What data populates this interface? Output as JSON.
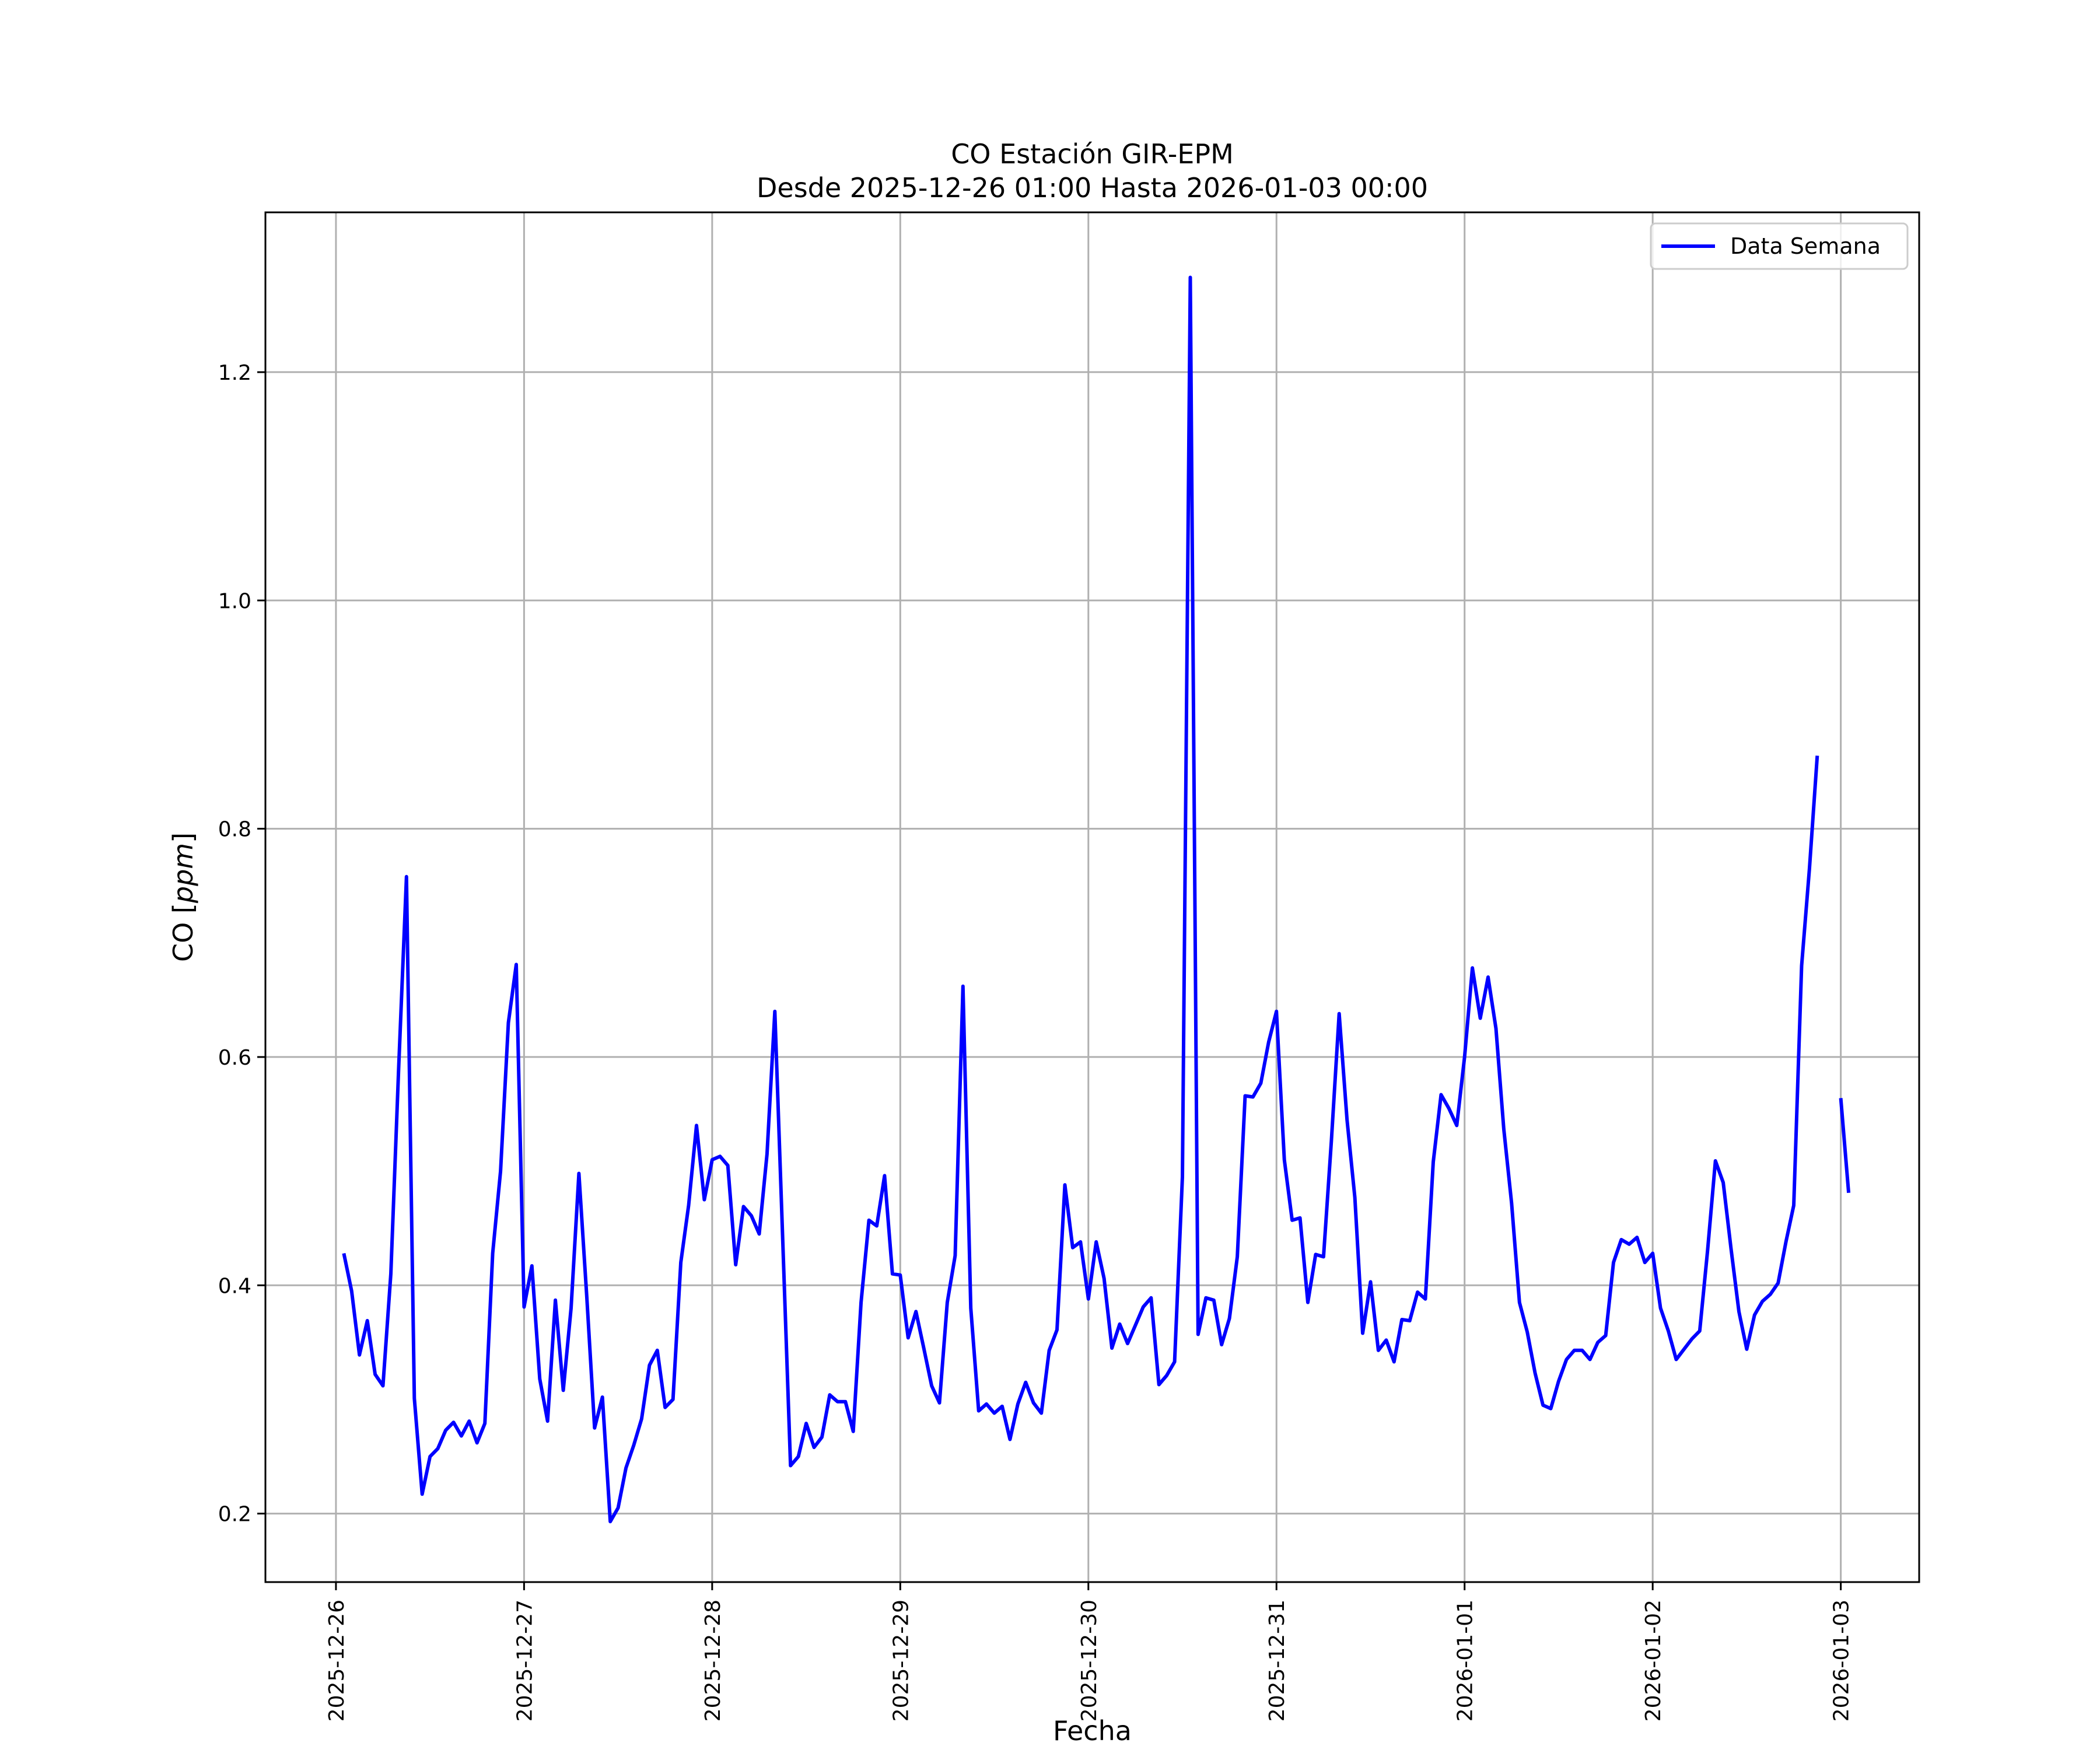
{
  "chart_data": {
    "type": "line",
    "title": "CO Estación GIR-EPM",
    "subtitle": "Desde 2025-12-26 01:00 Hasta 2026-01-03 00:00",
    "xlabel": "Fecha",
    "ylabel_text": "CO [",
    "ylabel_unit": "ppm",
    "ylabel_close": "]",
    "x_ticks": [
      "2025-12-26",
      "2025-12-27",
      "2025-12-28",
      "2025-12-29",
      "2025-12-30",
      "2025-12-31",
      "2026-01-01",
      "2026-01-02",
      "2026-01-03"
    ],
    "y_ticks": [
      0.2,
      0.4,
      0.6,
      0.8,
      1.0,
      1.2
    ],
    "y_tick_labels": [
      "0.2",
      "0.4",
      "0.6",
      "0.8",
      "1.0",
      "1.2"
    ],
    "xlim": [
      "2025-12-25T15:00",
      "2026-01-03T10:00"
    ],
    "ylim": [
      0.14,
      1.34
    ],
    "grid": true,
    "legend_position": "top-right",
    "series": [
      {
        "name": "Data Semana",
        "color": "#0000ff",
        "start": "2025-12-26T01:00",
        "step_hours": 1,
        "values": [
          0.428,
          0.395,
          0.339,
          0.369,
          0.322,
          0.312,
          0.41,
          0.59,
          0.758,
          0.301,
          0.217,
          0.25,
          0.257,
          0.273,
          0.28,
          0.268,
          0.281,
          0.262,
          0.279,
          0.428,
          0.5,
          0.63,
          0.681,
          0.381,
          0.417,
          0.318,
          0.281,
          0.387,
          0.308,
          0.38,
          0.498,
          0.39,
          0.275,
          0.302,
          0.193,
          0.205,
          0.24,
          0.26,
          0.283,
          0.33,
          0.343,
          0.293,
          0.3,
          0.42,
          0.47,
          0.54,
          0.475,
          0.51,
          0.513,
          0.505,
          0.418,
          0.469,
          0.461,
          0.445,
          0.515,
          0.64,
          0.44,
          0.242,
          0.25,
          0.279,
          0.258,
          0.267,
          0.304,
          0.298,
          0.298,
          0.272,
          0.385,
          0.457,
          0.452,
          0.496,
          0.41,
          0.409,
          0.354,
          0.377,
          0.345,
          0.312,
          0.297,
          0.385,
          0.426,
          0.662,
          0.38,
          0.29,
          0.296,
          0.288,
          0.294,
          0.265,
          0.296,
          0.315,
          0.297,
          0.288,
          0.343,
          0.361,
          0.488,
          0.433,
          0.438,
          0.388,
          0.438,
          0.406,
          0.345,
          0.366,
          0.349,
          0.365,
          0.381,
          0.389,
          0.313,
          0.321,
          0.333,
          0.495,
          1.283,
          0.357,
          0.389,
          0.387,
          0.348,
          0.371,
          0.425,
          0.566,
          0.565,
          0.577,
          0.613,
          0.64,
          0.51,
          0.457,
          0.459,
          0.385,
          0.427,
          0.425,
          0.526,
          0.638,
          0.545,
          0.477,
          0.358,
          0.403,
          0.343,
          0.352,
          0.333,
          0.37,
          0.369,
          0.394,
          0.388,
          0.508,
          0.567,
          0.555,
          0.54,
          0.6,
          0.678,
          0.634,
          0.67,
          0.625,
          0.537,
          0.472,
          0.385,
          0.359,
          0.323,
          0.295,
          0.292,
          0.316,
          0.335,
          0.343,
          0.343,
          0.335,
          0.35,
          0.356,
          0.42,
          0.44,
          0.436,
          0.442,
          0.42,
          0.428,
          0.38,
          0.36,
          0.335,
          0.344,
          0.353,
          0.36,
          0.43,
          0.509,
          0.49,
          0.432,
          0.377,
          0.344,
          0.374,
          0.386,
          0.392,
          0.402,
          0.438,
          0.47,
          0.68,
          0.765,
          0.864,
          null,
          null,
          0.564,
          0.481
        ]
      }
    ]
  }
}
